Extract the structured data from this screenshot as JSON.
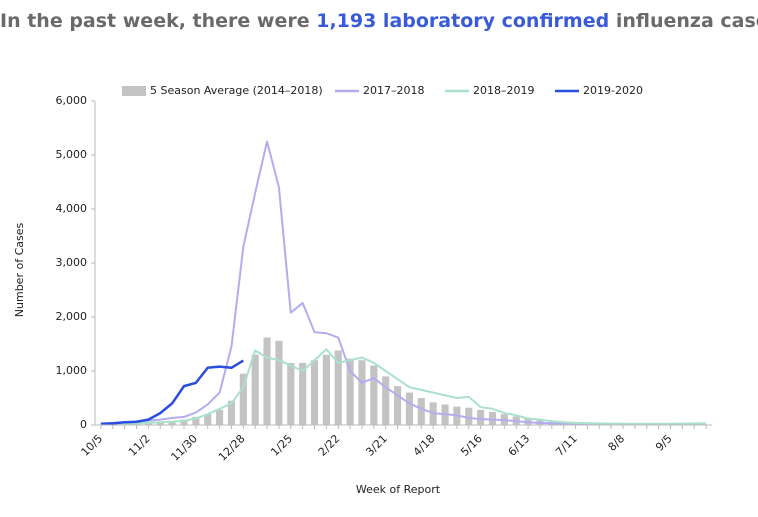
{
  "chart_data": {
    "type": "bar",
    "title": [
      "In the past week, there were ",
      "1,193 laboratory confirmed",
      " influenza cases."
    ],
    "x_label": "Week of Report",
    "y_label": "Number of Cases",
    "categories": [
      "10/5",
      null,
      null,
      null,
      "11/2",
      null,
      null,
      null,
      "11/30",
      null,
      null,
      null,
      "12/28",
      null,
      null,
      null,
      "1/25",
      null,
      null,
      null,
      "2/22",
      null,
      null,
      null,
      "3/21",
      null,
      null,
      null,
      "4/18",
      null,
      null,
      null,
      "5/16",
      null,
      null,
      null,
      "6/13",
      null,
      null,
      null,
      "7/11",
      null,
      null,
      null,
      "8/8",
      null,
      null,
      null,
      "9/5",
      null,
      null,
      null
    ],
    "ylim": [
      0,
      6000
    ],
    "yticks": [
      0,
      {
        "value": 1000,
        "label": "1,000"
      },
      {
        "value": 2000,
        "label": "2,000"
      },
      {
        "value": 3000,
        "label": "3,000"
      },
      {
        "value": 4000,
        "label": "4,000"
      },
      {
        "value": 5000,
        "label": "5,000"
      },
      {
        "value": 6000,
        "label": "6,000"
      }
    ],
    "grid": false,
    "legend": "top",
    "series": [
      {
        "name": "5 Season Average (2014–2018)",
        "type": "bar",
        "color": "#c3c3c3",
        "values": [
          10,
          15,
          20,
          30,
          40,
          50,
          70,
          100,
          150,
          200,
          280,
          450,
          950,
          1300,
          1620,
          1560,
          1150,
          1150,
          1200,
          1300,
          1380,
          1230,
          1200,
          1100,
          900,
          720,
          600,
          500,
          420,
          380,
          340,
          320,
          280,
          240,
          200,
          160,
          120,
          90,
          60,
          40,
          30,
          25,
          20,
          15,
          15,
          10,
          10,
          10,
          10,
          10,
          10,
          10
        ]
      },
      {
        "name": "2017–2018",
        "type": "line",
        "color": "#b3adf0",
        "values": [
          30,
          40,
          50,
          60,
          80,
          100,
          130,
          150,
          230,
          380,
          600,
          1450,
          3300,
          4300,
          5250,
          4400,
          2080,
          2260,
          1720,
          1700,
          1620,
          1000,
          780,
          870,
          700,
          550,
          400,
          300,
          220,
          200,
          180,
          130,
          110,
          100,
          90,
          70,
          50,
          40,
          30,
          25,
          20,
          20,
          20,
          20,
          20,
          20,
          20,
          20,
          20,
          20,
          20,
          20
        ]
      },
      {
        "name": "2018–2019",
        "type": "line",
        "color": "#a9e1cb",
        "values": [
          20,
          20,
          25,
          30,
          40,
          50,
          60,
          80,
          120,
          200,
          300,
          400,
          700,
          1380,
          1250,
          1200,
          1100,
          1000,
          1200,
          1400,
          1150,
          1200,
          1250,
          1150,
          1000,
          850,
          700,
          650,
          600,
          550,
          500,
          520,
          330,
          300,
          220,
          180,
          120,
          100,
          70,
          50,
          40,
          35,
          30,
          25,
          20,
          20,
          20,
          20,
          20,
          25,
          30,
          30
        ]
      },
      {
        "name": "2019-2020",
        "type": "line",
        "color": "#2a4de0",
        "values": [
          20,
          30,
          50,
          60,
          100,
          220,
          400,
          720,
          780,
          1060,
          1080,
          1060,
          1193,
          null,
          null,
          null,
          null,
          null,
          null,
          null,
          null,
          null,
          null,
          null,
          null,
          null,
          null,
          null,
          null,
          null,
          null,
          null,
          null,
          null,
          null,
          null,
          null,
          null,
          null,
          null,
          null,
          null,
          null,
          null,
          null,
          null,
          null,
          null,
          null,
          null,
          null,
          null
        ]
      }
    ]
  }
}
